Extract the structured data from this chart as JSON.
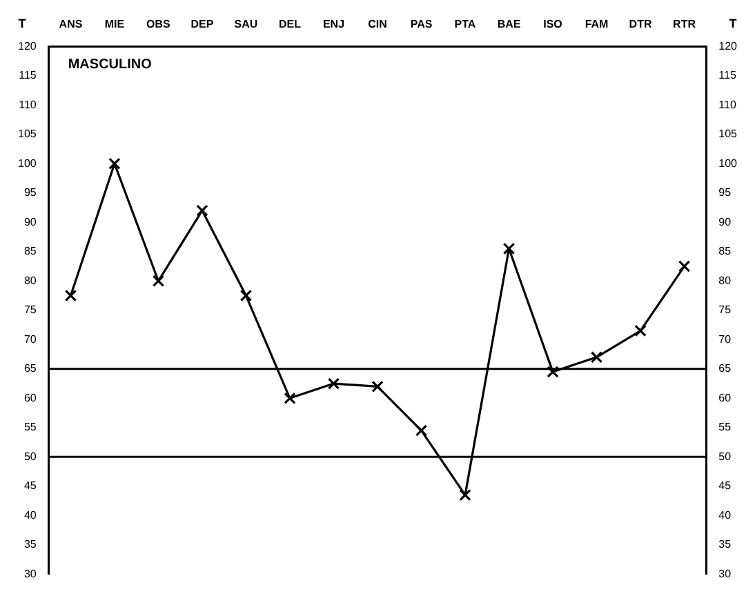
{
  "chart_data": {
    "type": "line",
    "title": "MASCULINO",
    "ylabel": "T",
    "y2label": "T",
    "categories": [
      "ANS",
      "MIE",
      "OBS",
      "DEP",
      "SAU",
      "DEL",
      "ENJ",
      "CIN",
      "PAS",
      "PTA",
      "BAE",
      "ISO",
      "FAM",
      "DTR",
      "RTR"
    ],
    "series": [
      {
        "color": "#000000",
        "values": [
          77.5,
          100,
          80,
          92,
          77.5,
          60,
          62.5,
          62,
          54.5,
          43.5,
          85.5,
          64.5,
          67,
          71.5,
          82.5
        ]
      }
    ],
    "ylim": [
      30,
      120
    ],
    "yticks": [
      30,
      35,
      40,
      45,
      50,
      55,
      60,
      65,
      70,
      75,
      80,
      85,
      90,
      95,
      100,
      105,
      110,
      115,
      120
    ],
    "y2lim": [
      30,
      120
    ],
    "y2ticks": [
      30,
      35,
      40,
      45,
      50,
      55,
      60,
      65,
      70,
      75,
      80,
      85,
      90,
      95,
      100,
      105,
      110,
      115,
      120
    ],
    "ref_lines": [
      {
        "axis": "y",
        "value": 65,
        "color": "#000000"
      },
      {
        "axis": "y",
        "value": 50,
        "color": "#000000"
      }
    ],
    "grid": false,
    "legend": false,
    "marker": "cross",
    "line_style": "solid"
  }
}
